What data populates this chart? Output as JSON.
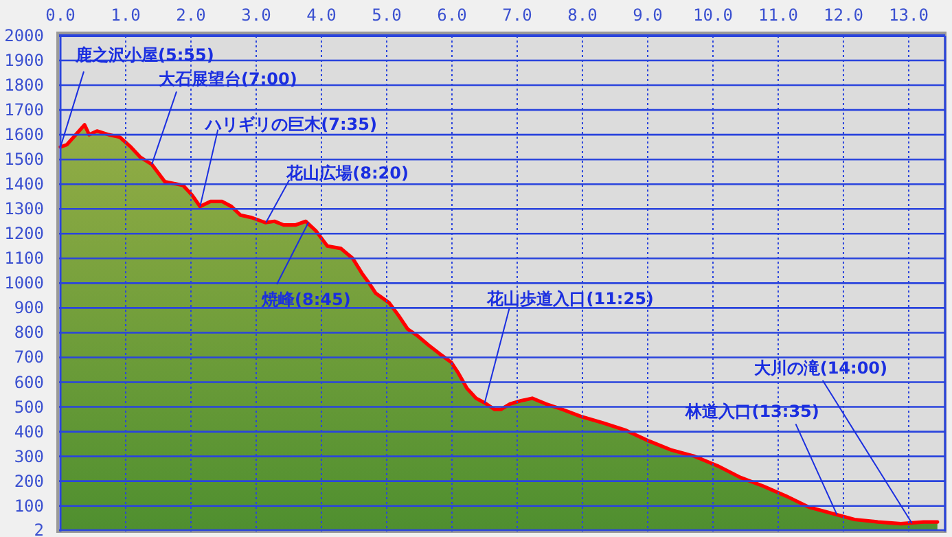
{
  "chart_data": {
    "type": "area",
    "xlim": [
      0,
      13.55
    ],
    "xticks": [
      {
        "value": 0,
        "label": "0.0"
      },
      {
        "value": 1,
        "label": "1.0"
      },
      {
        "value": 2,
        "label": "2.0"
      },
      {
        "value": 3,
        "label": "3.0"
      },
      {
        "value": 4,
        "label": "4.0"
      },
      {
        "value": 5,
        "label": "5.0"
      },
      {
        "value": 6,
        "label": "6.0"
      },
      {
        "value": 7,
        "label": "7.0"
      },
      {
        "value": 8,
        "label": "8.0"
      },
      {
        "value": 9,
        "label": "9.0"
      },
      {
        "value": 10,
        "label": "10.0"
      },
      {
        "value": 11,
        "label": "11.0"
      },
      {
        "value": 12,
        "label": "12.0"
      },
      {
        "value": 13,
        "label": "13.0"
      }
    ],
    "ylim": [
      2,
      2000
    ],
    "yticks": [
      2,
      100,
      200,
      300,
      400,
      500,
      600,
      700,
      800,
      900,
      1000,
      1100,
      1200,
      1300,
      1400,
      1500,
      1600,
      1700,
      1800,
      1900,
      2000
    ],
    "grid": true,
    "series": [
      {
        "color": "#ff0000",
        "x": [
          0,
          0.1,
          0.37,
          0.44,
          0.56,
          0.74,
          0.91,
          1.08,
          1.22,
          1.4,
          1.6,
          1.88,
          2.02,
          2.14,
          2.3,
          2.48,
          2.62,
          2.76,
          2.93,
          3.14,
          3.28,
          3.42,
          3.6,
          3.76,
          3.92,
          4.09,
          4.3,
          4.48,
          4.62,
          4.72,
          4.83,
          5.04,
          5.18,
          5.32,
          5.46,
          5.64,
          5.81,
          5.99,
          6.09,
          6.23,
          6.37,
          6.51,
          6.65,
          6.75,
          6.89,
          7.06,
          7.23,
          7.44,
          7.69,
          7.97,
          8.32,
          8.67,
          9.02,
          9.37,
          9.72,
          10.07,
          10.42,
          10.77,
          11.12,
          11.47,
          11.82,
          12.17,
          12.53,
          12.88,
          13.23,
          13.44
        ],
        "values": [
          1550,
          1560,
          1640,
          1600,
          1615,
          1600,
          1590,
          1550,
          1510,
          1480,
          1410,
          1395,
          1355,
          1310,
          1330,
          1330,
          1310,
          1275,
          1265,
          1245,
          1250,
          1235,
          1235,
          1250,
          1210,
          1150,
          1140,
          1100,
          1040,
          1004,
          960,
          920,
          870,
          815,
          790,
          750,
          715,
          680,
          640,
          575,
          535,
          515,
          490,
          490,
          512,
          525,
          535,
          512,
          490,
          462,
          435,
          405,
          362,
          325,
          300,
          262,
          215,
          180,
          140,
          95,
          70,
          45,
          35,
          28,
          35,
          35
        ]
      }
    ],
    "annotations": [
      {
        "text": "鹿之沢小屋(5:55)",
        "x": 0,
        "y": 1550
      },
      {
        "text": "大石展望台(7:00)",
        "x": 1.4,
        "y": 1480
      },
      {
        "text": "ハリギリの巨木(7:35)",
        "x": 2.14,
        "y": 1310
      },
      {
        "text": "花山広場(8:20)",
        "x": 3.15,
        "y": 1245
      },
      {
        "text": "焼峰(8:45)",
        "x": 3.8,
        "y": 1245
      },
      {
        "text": "花山歩道入口(11:25)",
        "x": 6.5,
        "y": 515
      },
      {
        "text": "林道入口(13:35)",
        "x": 11.9,
        "y": 65
      },
      {
        "text": "大川の滝(14:00)",
        "x": 13.05,
        "y": 30
      }
    ]
  }
}
